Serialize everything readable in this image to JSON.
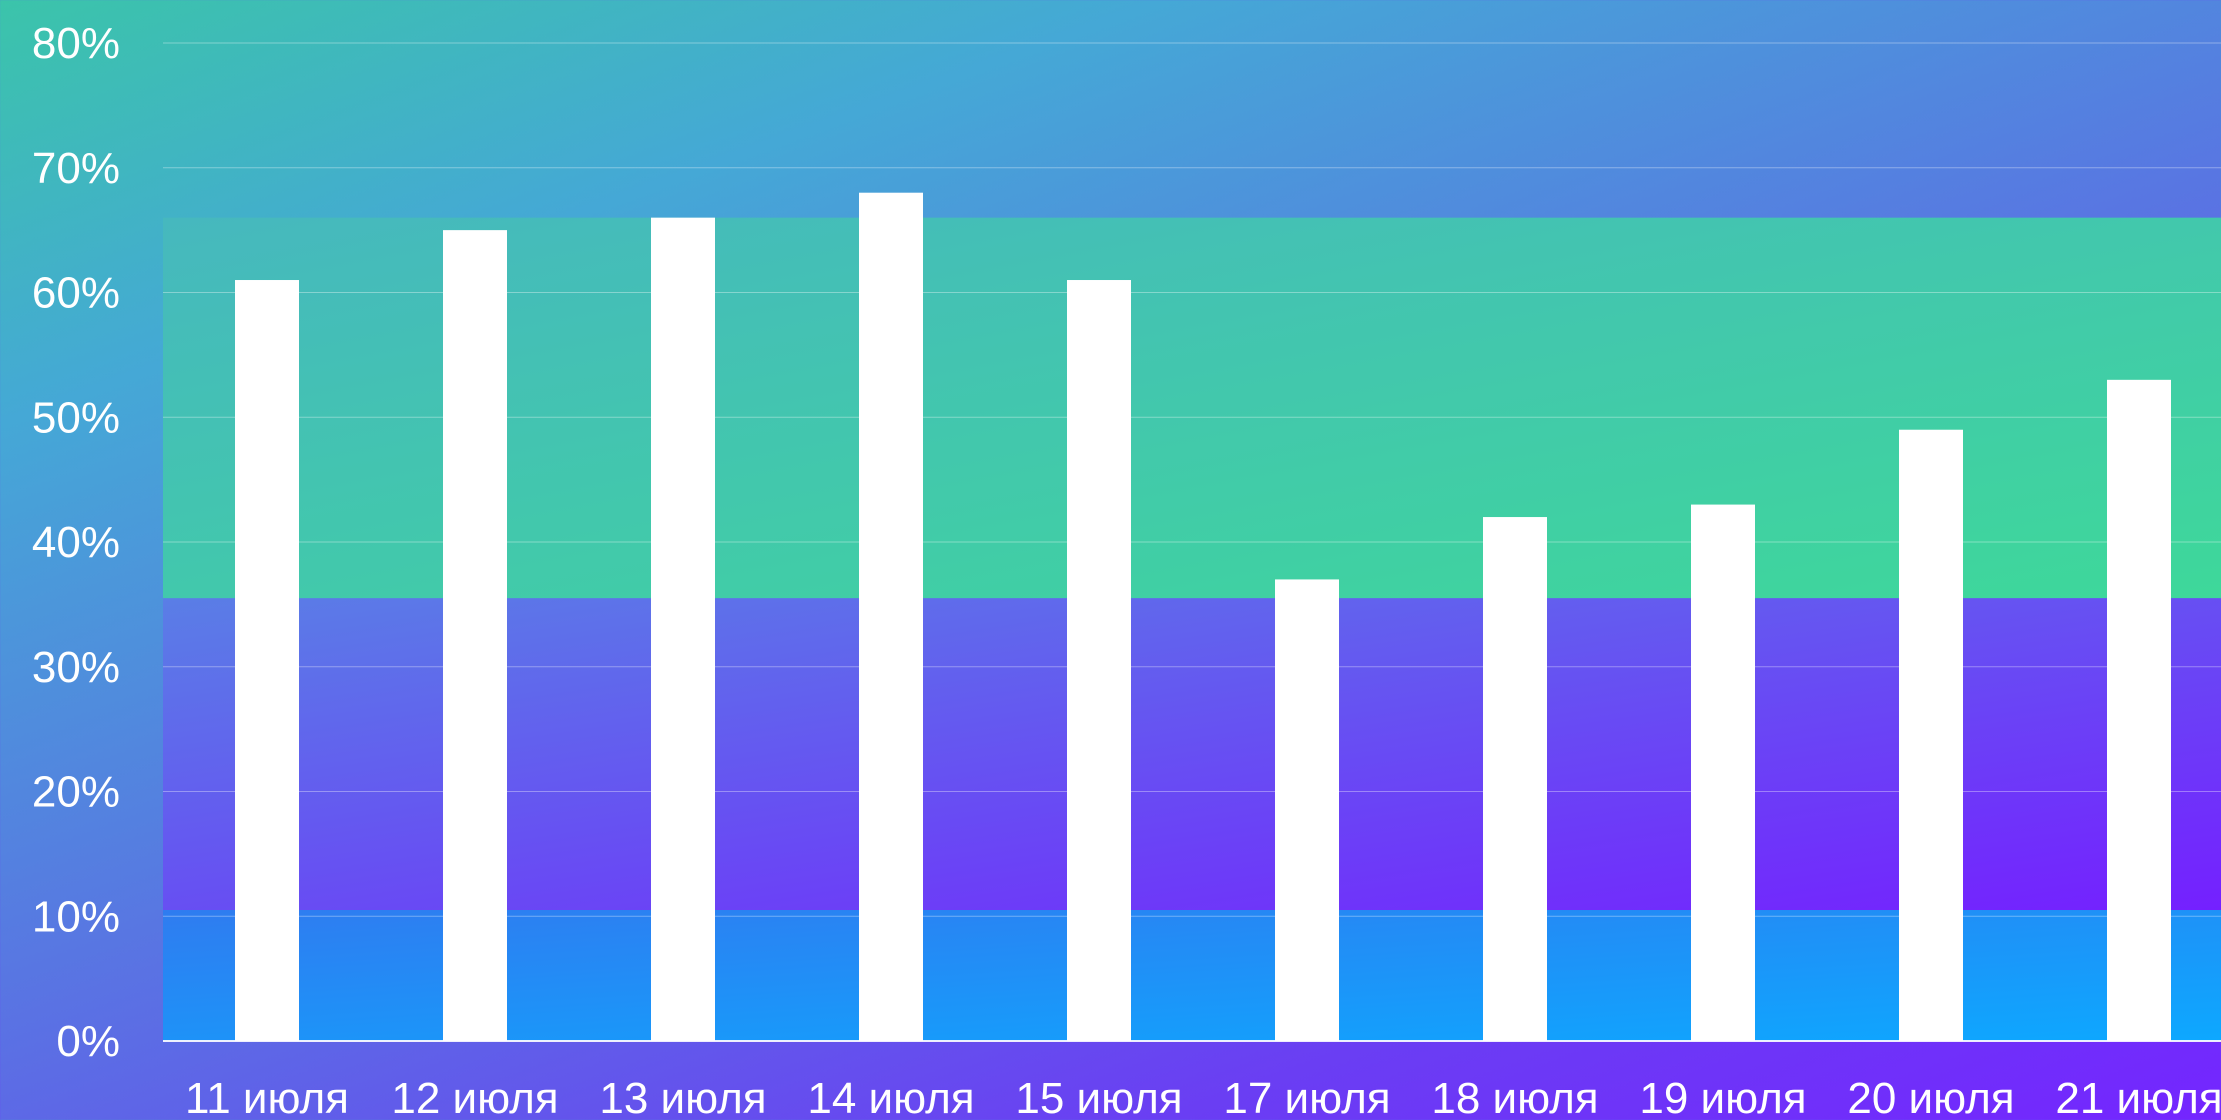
{
  "chart_data": {
    "type": "bar",
    "title": "",
    "xlabel": "",
    "ylabel": "",
    "ylim": [
      0,
      80
    ],
    "y_ticks": [
      0,
      10,
      20,
      30,
      40,
      50,
      60,
      70,
      80
    ],
    "y_tick_labels": [
      "0%",
      "10%",
      "20%",
      "30%",
      "40%",
      "50%",
      "60%",
      "70%",
      "80%"
    ],
    "categories": [
      "11 июля",
      "12 июля",
      "13 июля",
      "14 июля",
      "15 июля",
      "17 июля",
      "18 июля",
      "19 июля",
      "20 июля",
      "21 июля"
    ],
    "values": [
      61,
      65,
      66,
      68,
      61,
      37,
      42,
      43,
      49,
      53
    ],
    "grid": true,
    "bands": [
      {
        "from": 0,
        "to": 10.5,
        "colors": [
          "#2f7cf0",
          "#0da8ff"
        ]
      },
      {
        "from": 10.5,
        "to": 35.5,
        "colors": [
          "#5a7ee6",
          "#7420ff"
        ]
      },
      {
        "from": 35.5,
        "to": 66,
        "colors": [
          "#46b8be",
          "#3ed89a"
        ]
      }
    ],
    "bar_color": "#ffffff",
    "grid_color": "#ffffff"
  }
}
